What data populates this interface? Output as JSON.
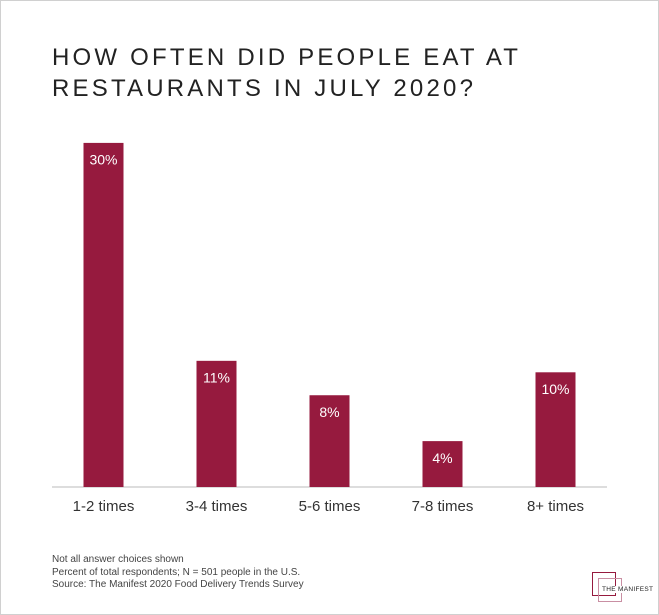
{
  "chart_data": {
    "type": "bar",
    "title": "How often did people eat at restaurants in July 2020?",
    "categories": [
      "1-2 times",
      "3-4 times",
      "5-6 times",
      "7-8 times",
      "8+ times"
    ],
    "values": [
      30,
      11,
      8,
      4,
      10
    ],
    "value_labels": [
      "30%",
      "11%",
      "8%",
      "4%",
      "10%"
    ],
    "color": "#961a3e",
    "notes": [
      "Not all answer choices shown",
      "Percent of total respondents; N = 501 people in the U.S.",
      "Source: The Manifest 2020 Food Delivery Trends Survey"
    ],
    "logo": "THE MANIFEST"
  }
}
